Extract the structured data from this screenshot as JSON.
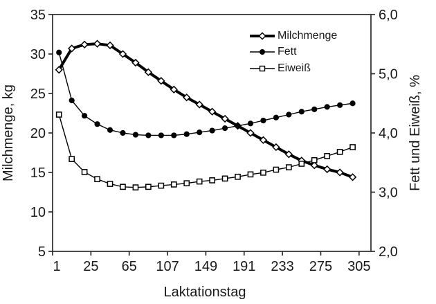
{
  "chart_data": {
    "type": "line",
    "title": "",
    "xlabel": "Laktationstag",
    "ylabel_left": "Milchmenge, kg",
    "ylabel_right": "Fett und Eiweiß, %",
    "x_axis": {
      "tick_labels": [
        "1",
        "25",
        "65",
        "107",
        "149",
        "191",
        "233",
        "275",
        "305"
      ],
      "note": "category axis; 24 evenly spaced test-day points; tick at every 3rd category boundary"
    },
    "y_axis_left": {
      "min": 5,
      "max": 35,
      "tick_labels": [
        "5",
        "10",
        "15",
        "20",
        "25",
        "30",
        "35"
      ]
    },
    "y_axis_right": {
      "min": 2.0,
      "max": 6.0,
      "tick_labels": [
        "2,0",
        "3,0",
        "4,0",
        "5,0",
        "6,0"
      ]
    },
    "grid": "off",
    "legend": {
      "position": "inside-top-right",
      "border": false
    },
    "series": [
      {
        "name": "Milchmenge",
        "axis": "left",
        "unit": "kg",
        "marker": "open-diamond",
        "line": "thick",
        "values": [
          28.0,
          30.7,
          31.2,
          31.3,
          31.1,
          30.0,
          28.9,
          27.7,
          26.6,
          25.5,
          24.5,
          23.6,
          22.7,
          21.8,
          20.9,
          20.0,
          19.1,
          18.2,
          17.3,
          16.5,
          15.9,
          15.4,
          15.0,
          14.4
        ]
      },
      {
        "name": "Fett",
        "axis": "right",
        "unit": "%",
        "marker": "filled-circle",
        "line": "thin",
        "values": [
          5.36,
          4.55,
          4.29,
          4.15,
          4.05,
          4.0,
          3.97,
          3.96,
          3.96,
          3.96,
          3.98,
          4.01,
          4.04,
          4.08,
          4.12,
          4.16,
          4.21,
          4.26,
          4.31,
          4.36,
          4.4,
          4.44,
          4.47,
          4.5
        ]
      },
      {
        "name": "Eiweiß",
        "axis": "right",
        "unit": "%",
        "marker": "open-square",
        "line": "thin",
        "values": [
          4.31,
          3.56,
          3.34,
          3.22,
          3.14,
          3.09,
          3.08,
          3.09,
          3.11,
          3.13,
          3.15,
          3.18,
          3.2,
          3.23,
          3.26,
          3.3,
          3.33,
          3.38,
          3.42,
          3.48,
          3.54,
          3.61,
          3.68,
          3.76
        ]
      }
    ]
  },
  "colors": {
    "series_line": "#000000",
    "marker_open_fill": "#ffffff",
    "axis": "#2b2b2b",
    "text": "#1a1a1a",
    "background": "#ffffff"
  }
}
